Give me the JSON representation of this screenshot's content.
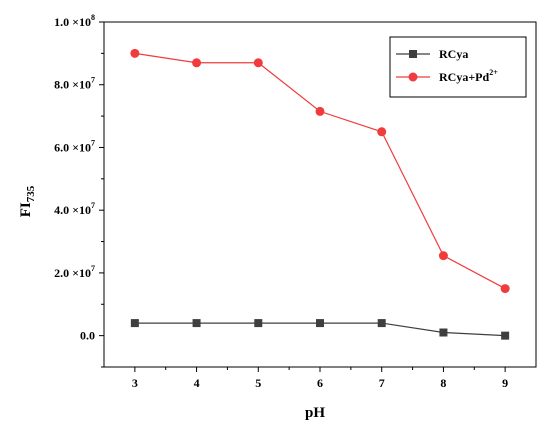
{
  "chart_data": {
    "type": "line",
    "xlabel": "pH",
    "ylabel": {
      "main": "FI",
      "sub": "735"
    },
    "xlim": [
      2.5,
      9.5
    ],
    "ylim": [
      -10000000.0,
      100000000.0
    ],
    "x": [
      3,
      4,
      5,
      6,
      7,
      8,
      9
    ],
    "x_tick_labels": [
      "3",
      "4",
      "5",
      "6",
      "7",
      "8",
      "9"
    ],
    "y_ticks": [
      {
        "value": 0,
        "mantissa": "0.0",
        "exp": ""
      },
      {
        "value": 20000000,
        "mantissa": "2.0",
        "exp": "7"
      },
      {
        "value": 40000000,
        "mantissa": "4.0",
        "exp": "7"
      },
      {
        "value": 60000000,
        "mantissa": "6.0",
        "exp": "7"
      },
      {
        "value": 80000000,
        "mantissa": "8.0",
        "exp": "7"
      },
      {
        "value": 100000000,
        "mantissa": "1.0",
        "exp": "8"
      }
    ],
    "y_tick_times": "×10",
    "legend_position": "top-right",
    "series": [
      {
        "name": "RCya",
        "color": "#3f3f3f",
        "marker": "square",
        "values": [
          4000000,
          4000000,
          4000000,
          4000000,
          4000000,
          1000000,
          0
        ]
      },
      {
        "name_base": "RCya+Pd",
        "name_sup": "2+",
        "color": "#f03c3c",
        "marker": "circle",
        "values": [
          90000000,
          87000000,
          87000000,
          71500000,
          65000000,
          25500000,
          15000000
        ]
      }
    ]
  }
}
